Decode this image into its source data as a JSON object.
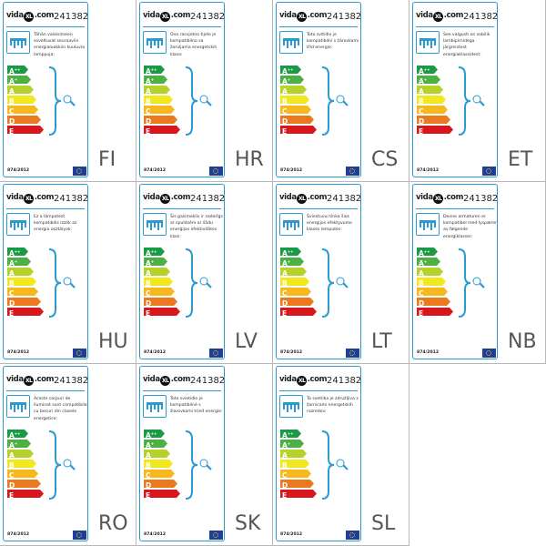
{
  "brand": "vidaXL.com",
  "product_code": "241382",
  "regulation": "874/2012",
  "ratings": [
    {
      "label": "A",
      "sup": "++",
      "color": "#1a9a45"
    },
    {
      "label": "A",
      "sup": "+",
      "color": "#4db042"
    },
    {
      "label": "A",
      "sup": "",
      "color": "#b6d12a"
    },
    {
      "label": "B",
      "sup": "",
      "color": "#f1e91d"
    },
    {
      "label": "C",
      "sup": "",
      "color": "#f6b81d"
    },
    {
      "label": "D",
      "sup": "",
      "color": "#eb7a1e"
    },
    {
      "label": "E",
      "sup": "",
      "color": "#d8161c"
    }
  ],
  "accent_color": "#2a9bd0",
  "labels": [
    {
      "lang": "FI",
      "text": "Tähän valaisimeen soveltuvat seuraaviin energialuokkiin kuuluvia lamppuja:"
    },
    {
      "lang": "HR",
      "text": "Ovo rasvjetno tijelo je kompatibilno sa žaruljama energetskih klasa:"
    },
    {
      "lang": "CS",
      "text": "Toto svítidlo je kompatibilní s žárovkami tříd energie:"
    },
    {
      "lang": "ET",
      "text": "See valgusti on sobilik lambipirnidega järgmistest energiaklassidest:"
    },
    {
      "lang": "HU",
      "text": "Ez a lámpatest kompatibilis izzók az energia osztályok:"
    },
    {
      "lang": "LV",
      "text": "Šis gaismeklis ir saderīgs ar spuldzēm ar šādu enerģijas efektivitātes klasi:"
    },
    {
      "lang": "LT",
      "text": "Šviestuvui tinka šios energijos efektyvumo klasės lemputės:"
    },
    {
      "lang": "NB",
      "text": "Denne armaturen er kompatibel med lyspærer av følgende energiklasser:"
    },
    {
      "lang": "RO",
      "text": "Aceste corpuri de iluminat sunt compatibile cu becuri din clasele energetice:"
    },
    {
      "lang": "SK",
      "text": "Toto svietidlo je kompatibilné s žiarovkami tried energie:"
    },
    {
      "lang": "SL",
      "text": "Ta svetilka je združljiva z žarnicami energetskih razredov:"
    }
  ]
}
